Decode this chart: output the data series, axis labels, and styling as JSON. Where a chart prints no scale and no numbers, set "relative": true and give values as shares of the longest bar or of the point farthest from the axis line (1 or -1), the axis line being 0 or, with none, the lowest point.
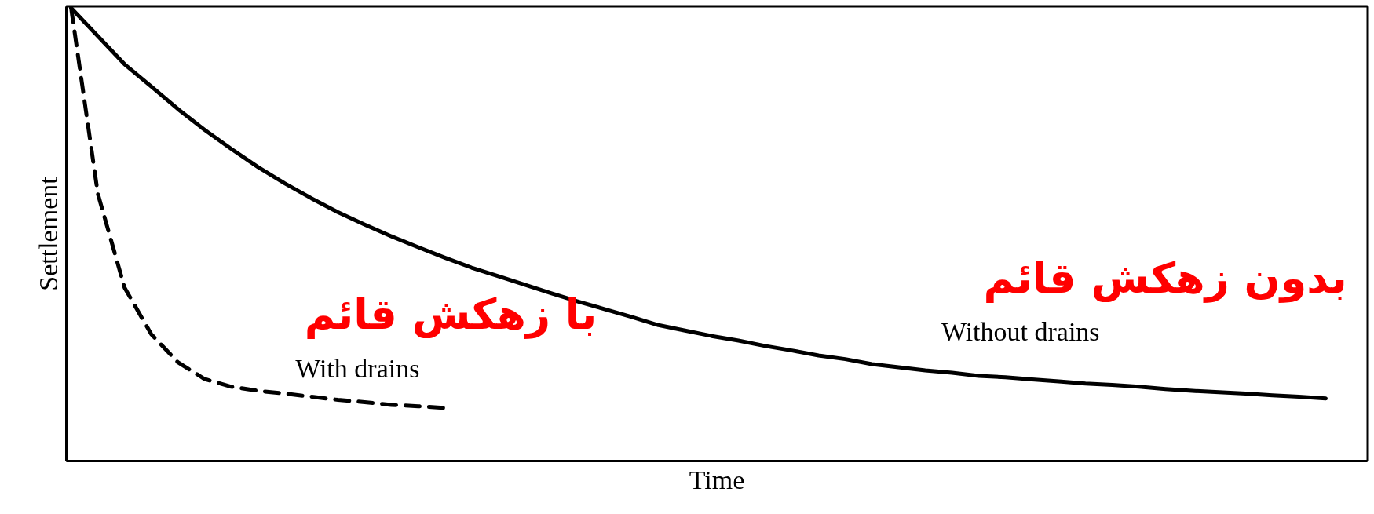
{
  "chart_data": {
    "type": "line",
    "relative": true,
    "xlabel": "Time",
    "ylabel": "Settlement",
    "categories": [
      null,
      null,
      null,
      null,
      null,
      null,
      null,
      null,
      null,
      null,
      null,
      null,
      null,
      null,
      null,
      null,
      null,
      null,
      null,
      null,
      null,
      null,
      null,
      null,
      null,
      null,
      null,
      null,
      null,
      null,
      null,
      null,
      null,
      null,
      null,
      null,
      null,
      null,
      null,
      null,
      null,
      null,
      null,
      null,
      null,
      null,
      null,
      null
    ],
    "series": [
      {
        "name": "Without drains",
        "color": "#000000",
        "line_style": "solid",
        "values": [
          1.0,
          0.938,
          0.876,
          0.827,
          0.777,
          0.731,
          0.689,
          0.649,
          0.613,
          0.58,
          0.549,
          0.522,
          0.496,
          0.472,
          0.449,
          0.427,
          0.408,
          0.389,
          0.37,
          0.352,
          0.335,
          0.318,
          0.3,
          0.288,
          0.276,
          0.266,
          0.254,
          0.244,
          0.233,
          0.225,
          0.214,
          0.207,
          0.2,
          0.195,
          0.188,
          0.185,
          0.18,
          0.176,
          0.171,
          0.168,
          0.164,
          0.159,
          0.155,
          0.152,
          0.149,
          0.145,
          0.142,
          0.138
        ]
      },
      {
        "name": "With drains",
        "color": "#000000",
        "line_style": "dashed",
        "values": [
          1.0,
          0.59,
          0.383,
          0.28,
          0.218,
          0.181,
          0.164,
          0.155,
          0.149,
          0.142,
          0.135,
          0.13,
          0.124,
          0.121,
          0.117,
          null,
          null,
          null,
          null,
          null,
          null,
          null,
          null,
          null,
          null,
          null,
          null,
          null,
          null,
          null,
          null,
          null,
          null,
          null,
          null,
          null,
          null,
          null,
          null,
          null,
          null,
          null,
          null,
          null,
          null,
          null,
          null,
          null
        ]
      }
    ],
    "annotations": [
      "با زهکش قائم",
      "بدون زهکش قائم"
    ]
  }
}
